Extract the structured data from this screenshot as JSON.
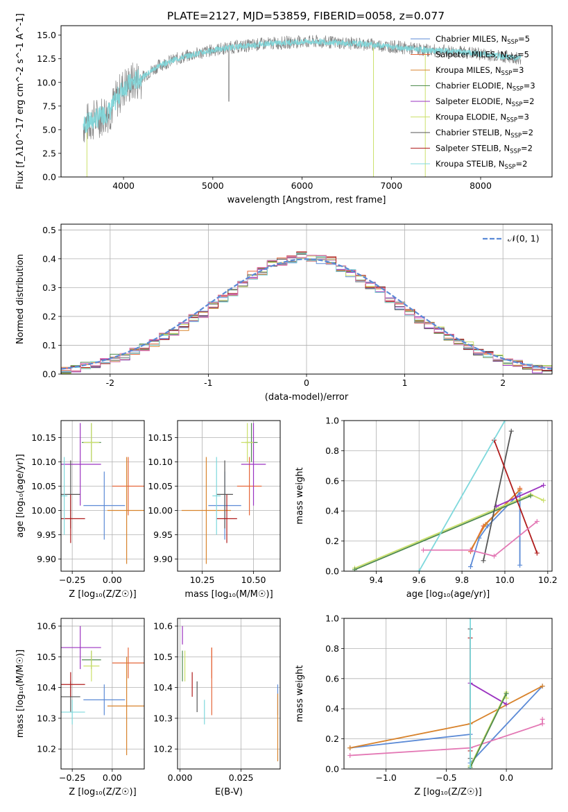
{
  "figure": {
    "title": "PLATE=2127, MJD=53859, FIBERID=0058, z=0.077"
  },
  "models": [
    {
      "label": "Chabrier MILES, N",
      "sub": "SSP",
      "suffix": "=5",
      "color": "#5b8ad6"
    },
    {
      "label": "Salpeter MILES, N",
      "sub": "SSP",
      "suffix": "=5",
      "color": "#e5663a"
    },
    {
      "label": "Kroupa MILES, N",
      "sub": "SSP",
      "suffix": "=3",
      "color": "#d8832c"
    },
    {
      "label": "Chabrier ELODIE, N",
      "sub": "SSP",
      "suffix": "=3",
      "color": "#4f8a4f"
    },
    {
      "label": "Salpeter ELODIE, N",
      "sub": "SSP",
      "suffix": "=2",
      "color": "#9a32c0"
    },
    {
      "label": "Kroupa ELODIE, N",
      "sub": "SSP",
      "suffix": "=3",
      "color": "#cbe06a"
    },
    {
      "label": "Chabrier STELIB, N",
      "sub": "SSP",
      "suffix": "=2",
      "color": "#555555"
    },
    {
      "label": "Salpeter STELIB, N",
      "sub": "SSP",
      "suffix": "=2",
      "color": "#b01c1c"
    },
    {
      "label": "Kroupa STELIB, N",
      "sub": "SSP",
      "suffix": "=2",
      "color": "#7ed8dc"
    }
  ],
  "chart_data": [
    {
      "id": "spectrum",
      "type": "line",
      "xlabel": "wavelength [Angstrom, rest frame]",
      "ylabel": "Flux [f_λ10^-17 erg cm^-2 s^-1 A^-1]",
      "xlim": [
        3300,
        8800
      ],
      "ylim": [
        0,
        16
      ],
      "xticks": [
        4000,
        5000,
        6000,
        7000,
        8000
      ],
      "yticks": [
        0.0,
        2.5,
        5.0,
        7.5,
        10.0,
        12.5,
        15.0
      ],
      "ytick_labels": [
        "0.0",
        "2.5",
        "5.0",
        "7.5",
        "10.0",
        "12.5",
        "15.0"
      ],
      "grid": false,
      "legend": "right",
      "continuum": {
        "x": [
          3550,
          3700,
          3850,
          4000,
          4200,
          4400,
          4600,
          4800,
          5000,
          5200,
          5400,
          5600,
          5800,
          6000,
          6200,
          6400,
          6600,
          6800,
          7000,
          7200,
          7400,
          7600,
          7800,
          8000,
          8200,
          8400
        ],
        "y": [
          5.5,
          6.2,
          7.0,
          9.5,
          10.5,
          11.8,
          12.5,
          13.0,
          13.4,
          13.7,
          13.9,
          14.1,
          14.2,
          14.3,
          14.3,
          14.2,
          14.1,
          14.0,
          13.8,
          13.6,
          13.4,
          13.3,
          13.2,
          13.0,
          12.8,
          12.6
        ]
      },
      "model_x_range": [
        3550,
        8450
      ],
      "data_color": "#808080",
      "model_color": "#7ed8dc"
    },
    {
      "id": "residuals",
      "type": "bar",
      "xlabel": "(data-model)/error",
      "ylabel": "Normed distribution",
      "xlim": [
        -2.5,
        2.5
      ],
      "ylim": [
        0,
        0.52
      ],
      "xticks": [
        -2,
        -1,
        0,
        1,
        2
      ],
      "yticks": [
        0.0,
        0.1,
        0.2,
        0.3,
        0.4,
        0.5
      ],
      "ytick_labels": [
        "0.0",
        "0.1",
        "0.2",
        "0.3",
        "0.4",
        "0.5"
      ],
      "grid": true,
      "legend": "top-right",
      "gaussian_label": "𝒩(0, 1)",
      "gaussian_color": "#5b8ad6",
      "bin_width": 0.1,
      "bin_start": -2.5,
      "bin_centers": [
        -2.45,
        -2.35,
        -2.25,
        -2.15,
        -2.05,
        -1.95,
        -1.85,
        -1.75,
        -1.65,
        -1.55,
        -1.45,
        -1.35,
        -1.25,
        -1.15,
        -1.05,
        -0.95,
        -0.85,
        -0.75,
        -0.65,
        -0.55,
        -0.45,
        -0.35,
        -0.25,
        -0.15,
        -0.05,
        0.05,
        0.15,
        0.25,
        0.35,
        0.45,
        0.55,
        0.65,
        0.75,
        0.85,
        0.95,
        1.05,
        1.15,
        1.25,
        1.35,
        1.45,
        1.55,
        1.65,
        1.75,
        1.85,
        1.95,
        2.05,
        2.15,
        2.25,
        2.35,
        2.45
      ],
      "hist_values": [
        0.015,
        0.02,
        0.027,
        0.035,
        0.043,
        0.052,
        0.063,
        0.077,
        0.092,
        0.11,
        0.128,
        0.147,
        0.168,
        0.19,
        0.21,
        0.24,
        0.26,
        0.285,
        0.31,
        0.34,
        0.36,
        0.38,
        0.39,
        0.4,
        0.41,
        0.405,
        0.4,
        0.39,
        0.37,
        0.35,
        0.33,
        0.31,
        0.29,
        0.26,
        0.24,
        0.21,
        0.19,
        0.17,
        0.15,
        0.13,
        0.11,
        0.095,
        0.08,
        0.066,
        0.054,
        0.044,
        0.035,
        0.028,
        0.021,
        0.016
      ],
      "hist_offsets": [
        0.004,
        -0.003,
        0.006,
        -0.005,
        0.002,
        -0.004,
        0.005,
        -0.002,
        0.006,
        -0.006,
        0.003,
        -0.003,
        0.005,
        0.004,
        -0.006,
        0.007,
        -0.004,
        0.008,
        -0.007,
        0.006,
        0.009,
        -0.008,
        0.007,
        0.01,
        -0.009,
        0.008,
        0.012,
        -0.01,
        0.006,
        0.009,
        -0.007,
        0.008,
        -0.006,
        0.007,
        0.01,
        -0.009,
        0.006,
        -0.004,
        0.005,
        0.008,
        -0.006,
        0.004,
        0.007,
        -0.005,
        0.003,
        0.006,
        -0.004,
        0.003,
        -0.002,
        0.003
      ]
    },
    {
      "id": "age_vs_Z",
      "type": "scatter",
      "xlabel": "Z [log₁₀(Z/Z☉)]",
      "ylabel": "age  [log₁₀(age/yr)]",
      "xlim": [
        -0.32,
        0.2
      ],
      "ylim": [
        9.875,
        10.185
      ],
      "xticks": [
        -0.25,
        0,
        0.25
      ],
      "xtick_labels": [
        "−0.25",
        "0.00",
        ""
      ],
      "yticks": [
        9.9,
        9.95,
        10.0,
        10.05,
        10.1,
        10.15
      ],
      "ytick_labels": [
        "9.90",
        "9.95",
        "10.00",
        "10.05",
        "10.10",
        "10.15"
      ],
      "grid": true,
      "points": [
        {
          "x": -0.05,
          "xe": 0.13,
          "y": 10.01,
          "ye": 0.07,
          "model": 0
        },
        {
          "x": 0.1,
          "xe": 0.1,
          "y": 10.05,
          "ye": 0.06,
          "model": 1
        },
        {
          "x": 0.09,
          "xe": 0.12,
          "y": 10.0,
          "ye": 0.11,
          "model": 2
        },
        {
          "x": -0.13,
          "xe": 0.06,
          "y": 10.14,
          "ye": 0.04,
          "model": 3
        },
        {
          "x": -0.2,
          "xe": 0.13,
          "y": 10.095,
          "ye": 0.085,
          "model": 4
        },
        {
          "x": -0.13,
          "xe": 0.05,
          "y": 10.14,
          "ye": 0.04,
          "model": 5
        },
        {
          "x": -0.26,
          "xe": 0.06,
          "y": 10.033,
          "ye": 0.07,
          "model": 6
        },
        {
          "x": -0.26,
          "xe": 0.09,
          "y": 9.983,
          "ye": 0.05,
          "model": 7
        },
        {
          "x": -0.3,
          "xe": 0.02,
          "y": 10.03,
          "ye": 0.08,
          "model": 8
        }
      ]
    },
    {
      "id": "age_vs_mass",
      "type": "scatter",
      "xlabel": "mass [log₁₀(M/M☉)]",
      "ylabel": "",
      "xlim": [
        10.13,
        10.63
      ],
      "ylim": [
        9.875,
        10.185
      ],
      "xticks": [
        10.25,
        10.5
      ],
      "xtick_labels": [
        "10.25",
        "10.50"
      ],
      "yticks": [
        9.9,
        9.95,
        10.0,
        10.05,
        10.1,
        10.15
      ],
      "ytick_labels": [
        "9.90",
        "9.95",
        "10.00",
        "10.05",
        "10.10",
        "10.15"
      ],
      "grid": true,
      "points": [
        {
          "x": 10.36,
          "xe": 0.08,
          "y": 10.01,
          "ye": 0.07,
          "model": 0
        },
        {
          "x": 10.48,
          "xe": 0.06,
          "y": 10.05,
          "ye": 0.06,
          "model": 1
        },
        {
          "x": 10.27,
          "xe": 0.12,
          "y": 10.0,
          "ye": 0.11,
          "model": 2
        },
        {
          "x": 10.49,
          "xe": 0.03,
          "y": 10.14,
          "ye": 0.04,
          "model": 3
        },
        {
          "x": 10.5,
          "xe": 0.06,
          "y": 10.095,
          "ye": 0.085,
          "model": 4
        },
        {
          "x": 10.47,
          "xe": 0.03,
          "y": 10.14,
          "ye": 0.04,
          "model": 5
        },
        {
          "x": 10.36,
          "xe": 0.04,
          "y": 10.033,
          "ye": 0.07,
          "model": 6
        },
        {
          "x": 10.37,
          "xe": 0.05,
          "y": 9.983,
          "ye": 0.05,
          "model": 7
        },
        {
          "x": 10.32,
          "xe": 0.02,
          "y": 10.03,
          "ye": 0.08,
          "model": 8
        }
      ]
    },
    {
      "id": "mass_weight_vs_age",
      "type": "line",
      "xlabel": "age  [log₁₀(age/yr)]",
      "ylabel": "mass weight",
      "xlim": [
        9.25,
        10.22
      ],
      "ylim": [
        0,
        1
      ],
      "xticks": [
        9.4,
        9.6,
        9.8,
        10.0,
        10.2
      ],
      "xtick_labels": [
        "9.4",
        "9.6",
        "9.8",
        "10.0",
        "10.2"
      ],
      "yticks": [
        0,
        0.2,
        0.4,
        0.6,
        0.8,
        1.0
      ],
      "ytick_labels": [
        "0.0",
        "0.2",
        "0.4",
        "0.6",
        "0.8",
        "1.0"
      ],
      "grid": true,
      "series": [
        {
          "model": 0,
          "x": [
            9.84,
            9.88,
            9.92,
            10.07,
            10.07
          ],
          "y": [
            0.03,
            0.22,
            0.3,
            0.52,
            0.04
          ]
        },
        {
          "model": 1,
          "x": [
            9.84,
            9.84,
            9.9,
            10.07,
            10.07
          ],
          "y": [
            0.14,
            0.13,
            0.3,
            0.54,
            0.55
          ]
        },
        {
          "model": 2,
          "x": [
            9.84,
            9.91,
            10.07
          ],
          "y": [
            0.14,
            0.31,
            0.54
          ]
        },
        {
          "model": 4,
          "x": [
            9.96,
            10.18
          ],
          "y": [
            0.43,
            0.57
          ]
        },
        {
          "model": 5,
          "x": [
            9.3,
            10.12,
            10.18
          ],
          "y": [
            0.02,
            0.51,
            0.47
          ]
        },
        {
          "model": 3,
          "x": [
            9.3,
            10.12
          ],
          "y": [
            0.01,
            0.5
          ]
        },
        {
          "model": 6,
          "x": [
            9.9,
            10.03
          ],
          "y": [
            0.07,
            0.93
          ]
        },
        {
          "model": 7,
          "x": [
            9.95,
            10.15
          ],
          "y": [
            0.87,
            0.12
          ]
        },
        {
          "model": 8,
          "x": [
            9.6,
            10.0
          ],
          "y": [
            0.0,
            1.0
          ]
        },
        {
          "color": "#e377b4",
          "x": [
            9.62,
            9.84,
            9.95,
            10.15
          ],
          "y": [
            0.14,
            0.14,
            0.1,
            0.33
          ]
        }
      ]
    },
    {
      "id": "mass_vs_Z",
      "type": "scatter",
      "xlabel": "Z [log₁₀(Z/Z☉)]",
      "ylabel": "mass [log₁₀(M/M☉)]",
      "xlim": [
        -0.32,
        0.2
      ],
      "ylim": [
        10.135,
        10.625
      ],
      "xticks": [
        -0.25,
        0,
        0.25
      ],
      "xtick_labels": [
        "−0.25",
        "0.00",
        ""
      ],
      "yticks": [
        10.2,
        10.3,
        10.4,
        10.5,
        10.6
      ],
      "ytick_labels": [
        "10.2",
        "10.3",
        "10.4",
        "10.5",
        "10.6"
      ],
      "grid": true,
      "points": [
        {
          "x": -0.05,
          "xe": 0.13,
          "y": 10.36,
          "ye": 0.05,
          "model": 0
        },
        {
          "x": 0.1,
          "xe": 0.1,
          "y": 10.48,
          "ye": 0.05,
          "model": 1
        },
        {
          "x": 0.09,
          "xe": 0.12,
          "y": 10.34,
          "ye": 0.16,
          "model": 2
        },
        {
          "x": -0.13,
          "xe": 0.06,
          "y": 10.49,
          "ye": 0.03,
          "model": 3
        },
        {
          "x": -0.2,
          "xe": 0.13,
          "y": 10.53,
          "ye": 0.07,
          "model": 4
        },
        {
          "x": -0.13,
          "xe": 0.05,
          "y": 10.47,
          "ye": 0.05,
          "model": 5
        },
        {
          "x": -0.26,
          "xe": 0.06,
          "y": 10.37,
          "ye": 0.05,
          "model": 6
        },
        {
          "x": -0.26,
          "xe": 0.09,
          "y": 10.41,
          "ye": 0.04,
          "model": 7
        },
        {
          "x": -0.25,
          "xe": 0.08,
          "y": 10.32,
          "ye": 0.04,
          "model": 8
        }
      ]
    },
    {
      "id": "mass_vs_EBV",
      "type": "scatter",
      "xlabel": "E(B-V)",
      "ylabel": "",
      "xlim": [
        -0.001,
        0.041
      ],
      "ylim": [
        10.135,
        10.625
      ],
      "xticks": [
        0.0,
        0.025
      ],
      "xtick_labels": [
        "0.000",
        "0.025"
      ],
      "yticks": [
        10.2,
        10.3,
        10.4,
        10.5,
        10.6
      ],
      "ytick_labels": [
        "10.2",
        "10.3",
        "10.4",
        "10.5",
        "10.6"
      ],
      "grid": true,
      "points": [
        {
          "x": 0.04,
          "xe": 0,
          "y": 10.36,
          "ye": 0.05,
          "model": 0
        },
        {
          "x": 0.013,
          "xe": 0,
          "y": 10.48,
          "ye": 0.05,
          "model": 1
        },
        {
          "x": 0.04,
          "xe": 0,
          "y": 10.27,
          "ye": 0.11,
          "model": 2
        },
        {
          "x": 0.001,
          "xe": 0,
          "y": 10.47,
          "ye": 0.05,
          "model": 3
        },
        {
          "x": 0.001,
          "xe": 0,
          "y": 10.57,
          "ye": 0.03,
          "model": 4
        },
        {
          "x": 0.002,
          "xe": 0,
          "y": 10.47,
          "ye": 0.05,
          "model": 5
        },
        {
          "x": 0.007,
          "xe": 0,
          "y": 10.37,
          "ye": 0.05,
          "model": 6
        },
        {
          "x": 0.005,
          "xe": 0,
          "y": 10.41,
          "ye": 0.04,
          "model": 7
        },
        {
          "x": 0.01,
          "xe": 0,
          "y": 10.32,
          "ye": 0.04,
          "model": 8
        },
        {
          "x": 0.013,
          "xe": 0,
          "y": 10.42,
          "ye": 0.11,
          "model": 1
        }
      ]
    },
    {
      "id": "mass_weight_vs_Z",
      "type": "line",
      "xlabel": "Z [log₁₀(Z/Z☉)]",
      "ylabel": "mass weight",
      "xlim": [
        -1.35,
        0.38
      ],
      "ylim": [
        0,
        1
      ],
      "xticks": [
        -1.0,
        -0.5,
        0.0
      ],
      "xtick_labels": [
        "−1.0",
        "−0.5",
        "0.0"
      ],
      "yticks": [
        0,
        0.2,
        0.4,
        0.6,
        0.8,
        1.0
      ],
      "ytick_labels": [
        "0.0",
        "0.2",
        "0.4",
        "0.6",
        "0.8",
        "1.0"
      ],
      "grid": true,
      "series": [
        {
          "model": 0,
          "x": [
            -1.3,
            -0.3,
            -0.3,
            0.3
          ],
          "y": [
            0.14,
            0.23,
            0.04,
            0.55
          ]
        },
        {
          "model": 2,
          "x": [
            -1.3,
            -0.3,
            0.3
          ],
          "y": [
            0.14,
            0.3,
            0.55
          ]
        },
        {
          "color": "#e377b4",
          "x": [
            -1.3,
            -0.3,
            0.3,
            0.3
          ],
          "y": [
            0.09,
            0.14,
            0.3,
            0.33
          ]
        },
        {
          "model": 4,
          "x": [
            -0.3,
            0.0
          ],
          "y": [
            0.57,
            0.43
          ]
        },
        {
          "model": 5,
          "x": [
            -0.3,
            0.0,
            0.0
          ],
          "y": [
            0.02,
            0.51,
            0.47
          ]
        },
        {
          "model": 3,
          "x": [
            -0.3,
            0.0
          ],
          "y": [
            0.01,
            0.5
          ]
        },
        {
          "model": 6,
          "x": [
            -0.3,
            -0.3
          ],
          "y": [
            0.07,
            0.93
          ]
        },
        {
          "model": 7,
          "x": [
            -0.3,
            -0.3
          ],
          "y": [
            0.87,
            0.12
          ]
        },
        {
          "model": 8,
          "x": [
            -0.3,
            -0.3
          ],
          "y": [
            0.0,
            1.0
          ]
        }
      ]
    }
  ]
}
